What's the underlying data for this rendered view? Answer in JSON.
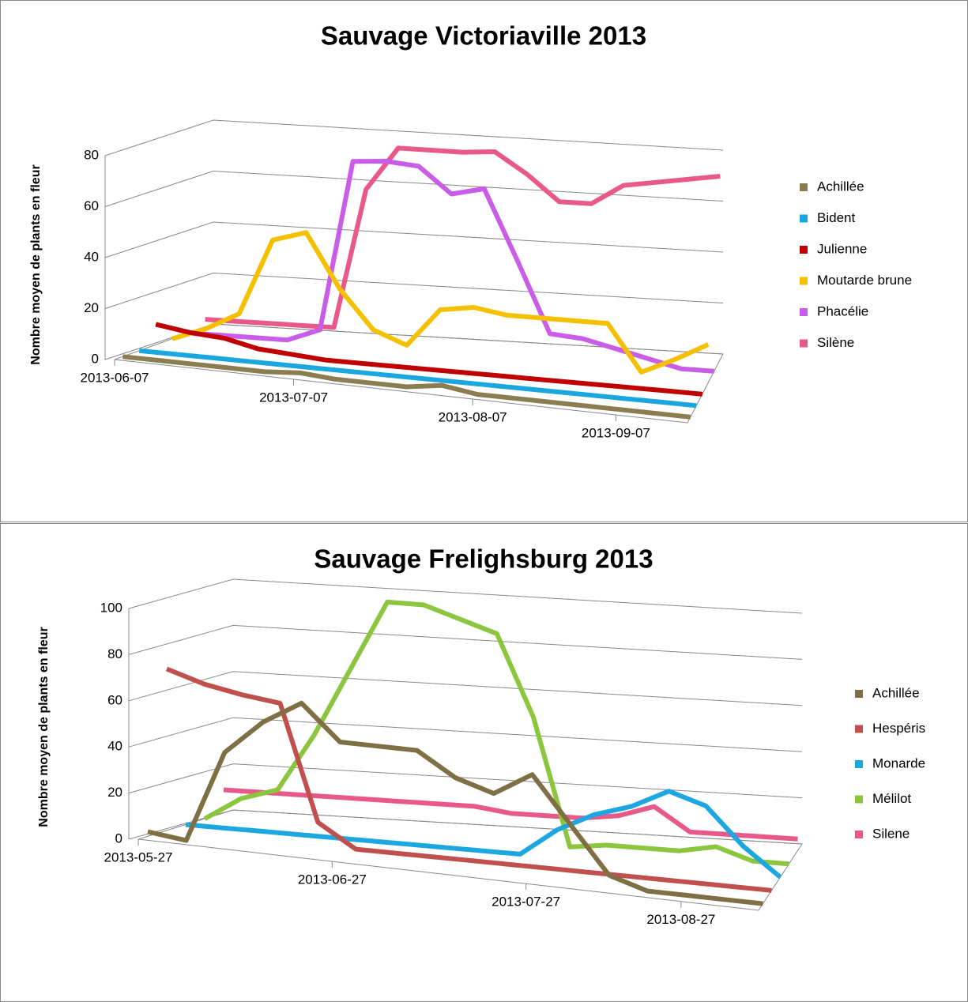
{
  "chart_data": [
    {
      "type": "line",
      "title": "Sauvage Victoriaville 2013",
      "y_label": "Nombre moyen de plants en fleur",
      "categories": [
        "2013-06-07",
        null,
        null,
        null,
        null,
        "2013-07-07",
        null,
        null,
        null,
        null,
        "2013-08-07",
        null,
        null,
        null,
        "2013-09-07",
        null,
        null
      ],
      "ylim": [
        0,
        80
      ],
      "yticks": [
        0,
        20,
        40,
        60,
        80
      ],
      "grid": true,
      "legend": "right",
      "series": [
        {
          "name": "Achillée",
          "color": "#8b7d4f",
          "values": [
            0,
            0,
            0,
            0,
            0,
            1,
            0,
            0,
            0,
            2,
            0,
            0,
            0,
            0,
            0,
            0,
            0
          ]
        },
        {
          "name": "Bident",
          "color": "#1aa7e0",
          "values": [
            0,
            0,
            0,
            0,
            0,
            0,
            0,
            0,
            0,
            0,
            0,
            0,
            0,
            0,
            0,
            0,
            0
          ]
        },
        {
          "name": "Julienne",
          "color": "#c00000",
          "values": [
            8,
            6,
            5,
            2,
            1,
            0,
            0,
            0,
            0,
            0,
            0,
            0,
            0,
            0,
            0,
            0,
            0
          ]
        },
        {
          "name": "Moutarde brune",
          "color": "#f5c000",
          "values": [
            0,
            5,
            12,
            42,
            46,
            25,
            10,
            5,
            20,
            22,
            20,
            20,
            20,
            20,
            2,
            8,
            15
          ]
        },
        {
          "name": "Phacélie",
          "color": "#c95de8",
          "values": [
            0,
            0,
            0,
            0,
            5,
            72,
            73,
            72,
            62,
            65,
            38,
            10,
            9,
            6,
            3,
            0,
            0
          ]
        },
        {
          "name": "Silène",
          "color": "#e8588a",
          "values": [
            3,
            3,
            3,
            3,
            3,
            58,
            75,
            75,
            75,
            76,
            68,
            58,
            58,
            66,
            68,
            70,
            72
          ]
        }
      ]
    },
    {
      "type": "line",
      "title": "Sauvage Frelighsburg  2013",
      "y_label": "Nombre moyen de plants en fleur",
      "categories": [
        "2013-05-27",
        null,
        null,
        null,
        null,
        "2013-06-27",
        null,
        null,
        null,
        null,
        "2013-07-27",
        null,
        null,
        null,
        "2013-08-27",
        null,
        null
      ],
      "ylim": [
        0,
        100
      ],
      "yticks": [
        0,
        20,
        40,
        60,
        80,
        100
      ],
      "grid": true,
      "legend": "right",
      "series": [
        {
          "name": "Achillée",
          "color": "#7f6f45",
          "values": [
            2,
            0,
            40,
            55,
            65,
            50,
            50,
            50,
            40,
            35,
            45,
            25,
            5,
            0,
            0,
            0,
            0
          ]
        },
        {
          "name": "Hespéris",
          "color": "#c0504d",
          "values": [
            70,
            65,
            62,
            60,
            10,
            0,
            0,
            0,
            0,
            0,
            0,
            0,
            0,
            0,
            0,
            0,
            0
          ]
        },
        {
          "name": "Monarde",
          "color": "#1ca7e0",
          "values": [
            0,
            0,
            0,
            0,
            0,
            0,
            0,
            0,
            0,
            0,
            12,
            20,
            25,
            33,
            28,
            12,
            0
          ]
        },
        {
          "name": "Mélilot",
          "color": "#8cc63f",
          "values": [
            0,
            10,
            15,
            40,
            70,
            100,
            100,
            95,
            90,
            55,
            0,
            2,
            2,
            2,
            5,
            0,
            0
          ]
        },
        {
          "name": "Silene",
          "color": "#e8588a",
          "values": [
            10,
            10,
            10,
            10,
            10,
            10,
            10,
            10,
            8,
            8,
            8,
            10,
            15,
            5,
            5,
            5,
            5
          ]
        }
      ]
    }
  ]
}
